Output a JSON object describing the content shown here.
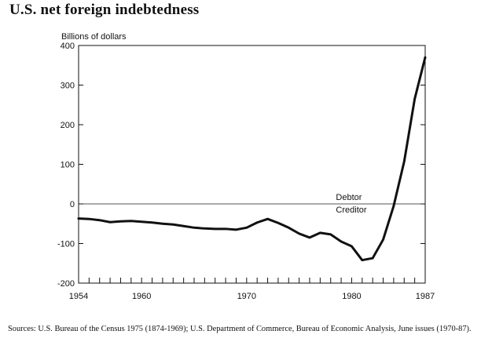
{
  "title": "U.S. net foreign indebtedness",
  "source_note": "Sources: U.S. Bureau of the Census 1975 (1874-1969); U.S. Department of Commerce, Bureau of Economic Analysis, June issues (1970-87).",
  "colors": {
    "line": "#111111",
    "zero_line": "#555555",
    "axis": "#111111"
  },
  "chart_data": {
    "type": "line",
    "title": "U.S. net foreign indebtedness",
    "ylabel": "Billions of dollars",
    "xlabel": "",
    "xlim": [
      1954,
      1987
    ],
    "ylim": [
      -200,
      400
    ],
    "x_ticks": [
      1954,
      1960,
      1970,
      1980,
      1987
    ],
    "y_ticks": [
      400,
      300,
      200,
      100,
      0,
      -100,
      -200
    ],
    "grid": false,
    "annotations": [
      {
        "text": "Debtor",
        "x": 1978.5,
        "y": 10
      },
      {
        "text": "Creditor",
        "x": 1978.5,
        "y": -22
      }
    ],
    "series": [
      {
        "x": [
          1954,
          1955,
          1956,
          1957,
          1958,
          1959,
          1960,
          1961,
          1962,
          1963,
          1964,
          1965,
          1966,
          1967,
          1968,
          1969,
          1970,
          1971,
          1972,
          1973,
          1974,
          1975,
          1976,
          1977,
          1978,
          1979,
          1980,
          1981,
          1982,
          1983,
          1984,
          1985,
          1986,
          1987
        ],
        "y": [
          -37,
          -38,
          -41,
          -46,
          -44,
          -43,
          -45,
          -47,
          -50,
          -52,
          -56,
          -60,
          -62,
          -63,
          -63,
          -65,
          -60,
          -47,
          -38,
          -48,
          -60,
          -75,
          -85,
          -73,
          -77,
          -95,
          -107,
          -142,
          -137,
          -90,
          -5,
          107,
          265,
          370
        ]
      }
    ]
  }
}
